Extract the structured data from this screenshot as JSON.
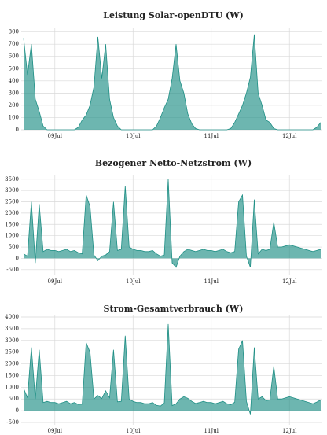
{
  "chart_data": [
    {
      "type": "area",
      "title": "Leistung Solar-openDTU (W)",
      "color": "#1f8f85",
      "x": [
        8.6,
        8.65,
        8.7,
        8.75,
        8.8,
        8.85,
        8.9,
        8.95,
        9,
        9.05,
        9.1,
        9.15,
        9.2,
        9.25,
        9.3,
        9.35,
        9.4,
        9.45,
        9.5,
        9.55,
        9.6,
        9.65,
        9.7,
        9.75,
        9.8,
        9.85,
        9.9,
        9.95,
        10,
        10.05,
        10.1,
        10.15,
        10.2,
        10.25,
        10.3,
        10.35,
        10.4,
        10.45,
        10.5,
        10.55,
        10.6,
        10.65,
        10.7,
        10.75,
        10.8,
        10.85,
        10.9,
        10.95,
        11,
        11.05,
        11.1,
        11.15,
        11.2,
        11.25,
        11.3,
        11.35,
        11.4,
        11.45,
        11.5,
        11.55,
        11.6,
        11.65,
        11.7,
        11.75,
        11.8,
        11.85,
        11.9,
        11.95,
        12,
        12.05,
        12.1,
        12.15,
        12.2,
        12.25,
        12.3,
        12.35,
        12.4
      ],
      "values": [
        750,
        450,
        700,
        250,
        150,
        30,
        0,
        0,
        0,
        0,
        0,
        0,
        0,
        0,
        20,
        80,
        120,
        200,
        350,
        760,
        420,
        700,
        250,
        100,
        30,
        0,
        0,
        0,
        0,
        0,
        0,
        0,
        0,
        0,
        30,
        100,
        180,
        250,
        420,
        700,
        400,
        300,
        130,
        50,
        10,
        0,
        0,
        0,
        0,
        0,
        0,
        0,
        0,
        10,
        60,
        130,
        200,
        300,
        430,
        780,
        300,
        200,
        80,
        60,
        10,
        0,
        0,
        0,
        0,
        0,
        0,
        0,
        0,
        0,
        0,
        20,
        60
      ],
      "xlim": [
        8.57,
        12.42
      ],
      "ylim": [
        0,
        830
      ],
      "xticks": [
        {
          "value": 9,
          "label": "09Jul"
        },
        {
          "value": 10,
          "label": "10Jul"
        },
        {
          "value": 11,
          "label": "11Jul"
        },
        {
          "value": 12,
          "label": "12Jul"
        }
      ],
      "yticks": [
        0,
        100,
        200,
        300,
        400,
        500,
        600,
        700,
        800
      ],
      "grid": true
    },
    {
      "type": "area",
      "title": "Bezogener Netto-Netzstrom (W)",
      "color": "#1f8f85",
      "x": [
        8.6,
        8.65,
        8.7,
        8.75,
        8.8,
        8.85,
        8.9,
        8.95,
        9,
        9.05,
        9.1,
        9.15,
        9.2,
        9.25,
        9.3,
        9.35,
        9.4,
        9.45,
        9.5,
        9.55,
        9.6,
        9.65,
        9.7,
        9.75,
        9.8,
        9.85,
        9.9,
        9.95,
        10,
        10.05,
        10.1,
        10.15,
        10.2,
        10.25,
        10.3,
        10.35,
        10.4,
        10.45,
        10.5,
        10.55,
        10.6,
        10.65,
        10.7,
        10.75,
        10.8,
        10.85,
        10.9,
        10.95,
        11,
        11.05,
        11.1,
        11.15,
        11.2,
        11.25,
        11.3,
        11.35,
        11.4,
        11.45,
        11.5,
        11.55,
        11.6,
        11.65,
        11.7,
        11.75,
        11.8,
        11.85,
        11.9,
        11.95,
        12,
        12.05,
        12.1,
        12.15,
        12.2,
        12.25,
        12.3,
        12.35,
        12.4
      ],
      "values": [
        200,
        100,
        2500,
        -200,
        2400,
        300,
        400,
        350,
        350,
        300,
        350,
        400,
        300,
        350,
        250,
        200,
        2800,
        2300,
        150,
        -100,
        100,
        150,
        300,
        2500,
        350,
        400,
        3200,
        500,
        400,
        350,
        350,
        300,
        300,
        350,
        200,
        100,
        150,
        3500,
        -200,
        -400,
        100,
        300,
        400,
        350,
        300,
        350,
        400,
        350,
        350,
        300,
        350,
        400,
        300,
        250,
        300,
        2500,
        2800,
        100,
        -400,
        2600,
        200,
        400,
        350,
        400,
        1600,
        500,
        500,
        550,
        600,
        550,
        500,
        450,
        400,
        350,
        300,
        350,
        400
      ],
      "xlim": [
        8.57,
        12.42
      ],
      "ylim": [
        -750,
        3700
      ],
      "xticks": [
        {
          "value": 9,
          "label": "09Jul"
        },
        {
          "value": 10,
          "label": "10Jul"
        },
        {
          "value": 11,
          "label": "11Jul"
        },
        {
          "value": 12,
          "label": "12Jul"
        }
      ],
      "yticks": [
        -500,
        0,
        500,
        1000,
        1500,
        2000,
        2500,
        3000,
        3500
      ],
      "grid": true
    },
    {
      "type": "area",
      "title": "Strom-Gesamtverbrauch (W)",
      "color": "#1f8f85",
      "x": [
        8.6,
        8.65,
        8.7,
        8.75,
        8.8,
        8.85,
        8.9,
        8.95,
        9,
        9.05,
        9.1,
        9.15,
        9.2,
        9.25,
        9.3,
        9.35,
        9.4,
        9.45,
        9.5,
        9.55,
        9.6,
        9.65,
        9.7,
        9.75,
        9.8,
        9.85,
        9.9,
        9.95,
        10,
        10.05,
        10.1,
        10.15,
        10.2,
        10.25,
        10.3,
        10.35,
        10.4,
        10.45,
        10.5,
        10.55,
        10.6,
        10.65,
        10.7,
        10.75,
        10.8,
        10.85,
        10.9,
        10.95,
        11,
        11.05,
        11.1,
        11.15,
        11.2,
        11.25,
        11.3,
        11.35,
        11.4,
        11.45,
        11.5,
        11.55,
        11.6,
        11.65,
        11.7,
        11.75,
        11.8,
        11.85,
        11.9,
        11.95,
        12,
        12.05,
        12.1,
        12.15,
        12.2,
        12.25,
        12.3,
        12.35,
        12.4
      ],
      "values": [
        950,
        550,
        2700,
        500,
        2600,
        350,
        400,
        350,
        350,
        300,
        350,
        400,
        300,
        350,
        270,
        280,
        2900,
        2500,
        500,
        650,
        520,
        850,
        550,
        2600,
        380,
        400,
        3200,
        500,
        400,
        350,
        350,
        300,
        300,
        350,
        230,
        200,
        330,
        3700,
        220,
        300,
        500,
        600,
        530,
        400,
        310,
        350,
        400,
        350,
        350,
        300,
        350,
        400,
        300,
        260,
        360,
        2630,
        3000,
        400,
        -150,
        2700,
        500,
        600,
        430,
        460,
        1900,
        500,
        500,
        550,
        600,
        550,
        500,
        450,
        400,
        350,
        300,
        370,
        460
      ],
      "xlim": [
        8.57,
        12.42
      ],
      "ylim": [
        -600,
        4100
      ],
      "xticks": [
        {
          "value": 9,
          "label": "09Jul"
        },
        {
          "value": 10,
          "label": "10Jul"
        },
        {
          "value": 11,
          "label": "11Jul"
        },
        {
          "value": 12,
          "label": "12Jul"
        }
      ],
      "yticks": [
        -500,
        0,
        500,
        1000,
        1500,
        2000,
        2500,
        3000,
        3500,
        4000
      ],
      "grid": true
    }
  ]
}
